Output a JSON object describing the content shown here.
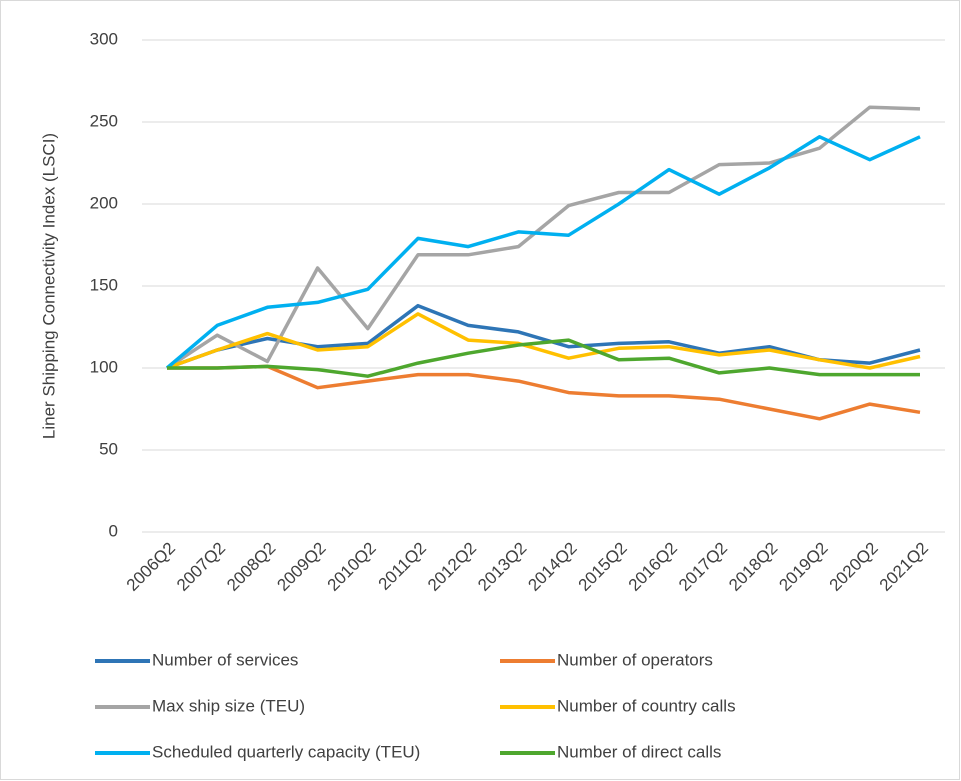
{
  "chart_data": {
    "type": "line",
    "y_label": "Liner Shipping Connectivity Index (LSCI)",
    "categories": [
      "2006Q2",
      "2007Q2",
      "2008Q2",
      "2009Q2",
      "2010Q2",
      "2011Q2",
      "2012Q2",
      "2013Q2",
      "2014Q2",
      "2015Q2",
      "2016Q2",
      "2017Q2",
      "2018Q2",
      "2019Q2",
      "2020Q2",
      "2021Q2"
    ],
    "series": [
      {
        "name": "Number of services",
        "color": "#2e75b6",
        "values": [
          100,
          111,
          118,
          113,
          115,
          138,
          126,
          122,
          113,
          115,
          116,
          109,
          113,
          105,
          103,
          111
        ]
      },
      {
        "name": "Number of operators",
        "color": "#ed7d31",
        "values": [
          100,
          100,
          101,
          88,
          92,
          96,
          96,
          92,
          85,
          83,
          83,
          81,
          75,
          69,
          78,
          73
        ]
      },
      {
        "name": "Max ship size (TEU)",
        "color": "#a5a5a5",
        "values": [
          100,
          120,
          104,
          161,
          124,
          169,
          169,
          174,
          199,
          207,
          207,
          224,
          225,
          234,
          259,
          258
        ]
      },
      {
        "name": "Number of country calls",
        "color": "#ffc000",
        "values": [
          100,
          111,
          121,
          111,
          113,
          133,
          117,
          115,
          106,
          112,
          113,
          108,
          111,
          105,
          100,
          107
        ]
      },
      {
        "name": "Scheduled quarterly capacity (TEU)",
        "color": "#00b0f0",
        "values": [
          100,
          126,
          137,
          140,
          148,
          179,
          174,
          183,
          181,
          200,
          221,
          206,
          222,
          241,
          227,
          241
        ]
      },
      {
        "name": "Number of direct calls",
        "color": "#4ea72e",
        "values": [
          100,
          100,
          101,
          99,
          95,
          103,
          109,
          114,
          117,
          105,
          106,
          97,
          100,
          96,
          96,
          96
        ]
      }
    ],
    "ylim": [
      0,
      300
    ],
    "yticks": [
      0,
      50,
      100,
      150,
      200,
      250,
      300
    ],
    "grid": true
  }
}
